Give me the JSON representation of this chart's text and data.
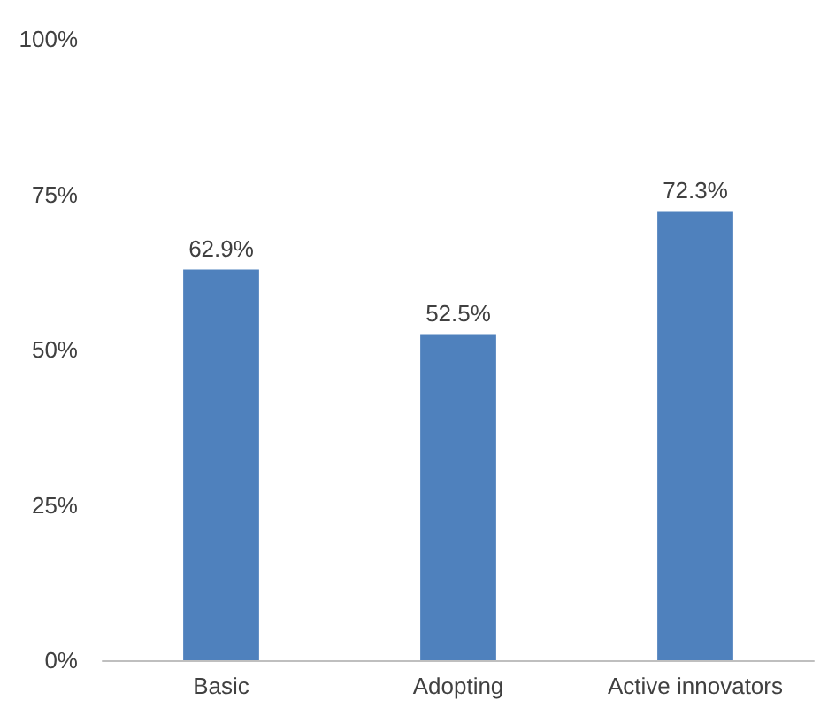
{
  "chart_data": {
    "type": "bar",
    "categories": [
      "Basic",
      "Adopting",
      "Active innovators"
    ],
    "values": [
      62.9,
      52.5,
      72.3
    ],
    "color": "#4f81bd",
    "value_labels": [
      "62.9%",
      "52.5%",
      "72.3%"
    ],
    "ylim": [
      0,
      100
    ],
    "yticks": [
      {
        "value": 0,
        "label": "0%"
      },
      {
        "value": 25,
        "label": "25%"
      },
      {
        "value": 50,
        "label": "50%"
      },
      {
        "value": 75,
        "label": "75%"
      },
      {
        "value": 100,
        "label": "100%"
      }
    ],
    "grid": false
  }
}
